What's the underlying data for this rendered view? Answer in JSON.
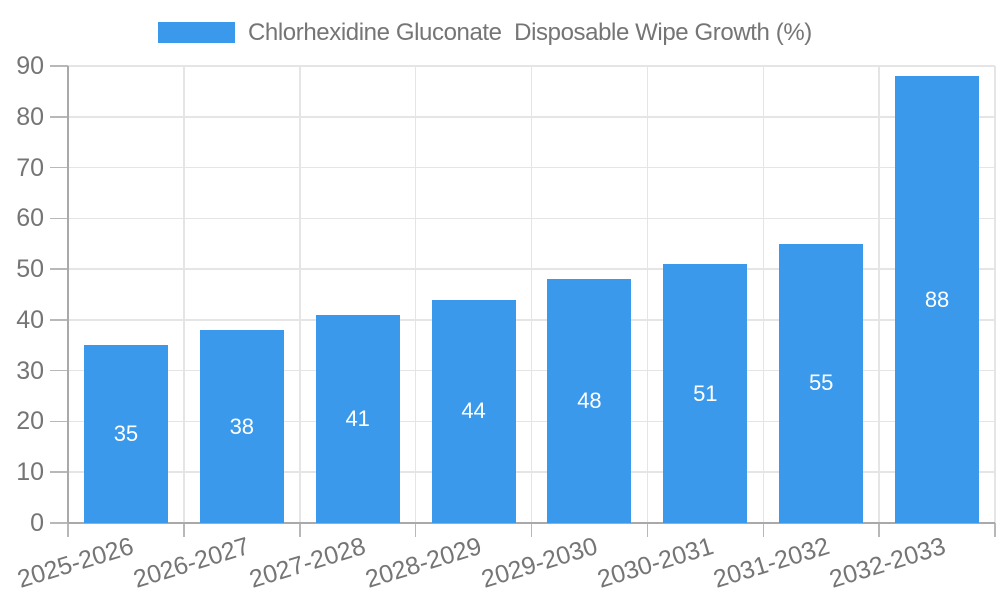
{
  "legend": {
    "label": "Chlorhexidine Gluconate  Disposable Wipe Growth (%)",
    "swatch_color": "#3b99ec"
  },
  "chart_data": {
    "type": "bar",
    "title": "Chlorhexidine Gluconate  Disposable Wipe Growth (%)",
    "categories": [
      "2025-2026",
      "2026-2027",
      "2027-2028",
      "2028-2029",
      "2029-2030",
      "2030-2031",
      "2031-2032",
      "2032-2033"
    ],
    "series": [
      {
        "name": "Chlorhexidine Gluconate  Disposable Wipe Growth (%)",
        "values": [
          35,
          38,
          41,
          44,
          48,
          51,
          55,
          88
        ]
      }
    ],
    "value_labels": [
      "35",
      "38",
      "41",
      "44",
      "48",
      "51",
      "55",
      "88"
    ],
    "xlabel": "",
    "ylabel": "",
    "ylim": [
      0,
      90
    ],
    "yticks": [
      0,
      10,
      20,
      30,
      40,
      50,
      60,
      70,
      80,
      90
    ],
    "grid": "horizontal-and-vertical",
    "legend_position": "top-center",
    "x_label_rotation_deg": -17,
    "colors": {
      "bar": "#3b99ec",
      "value_label": "#ffffff",
      "axis_text": "#757575",
      "grid_line": "#e5e5e5",
      "axis_line": "#a9a9a9",
      "tick_mark": "#b8b8b8",
      "background": "#ffffff"
    }
  }
}
